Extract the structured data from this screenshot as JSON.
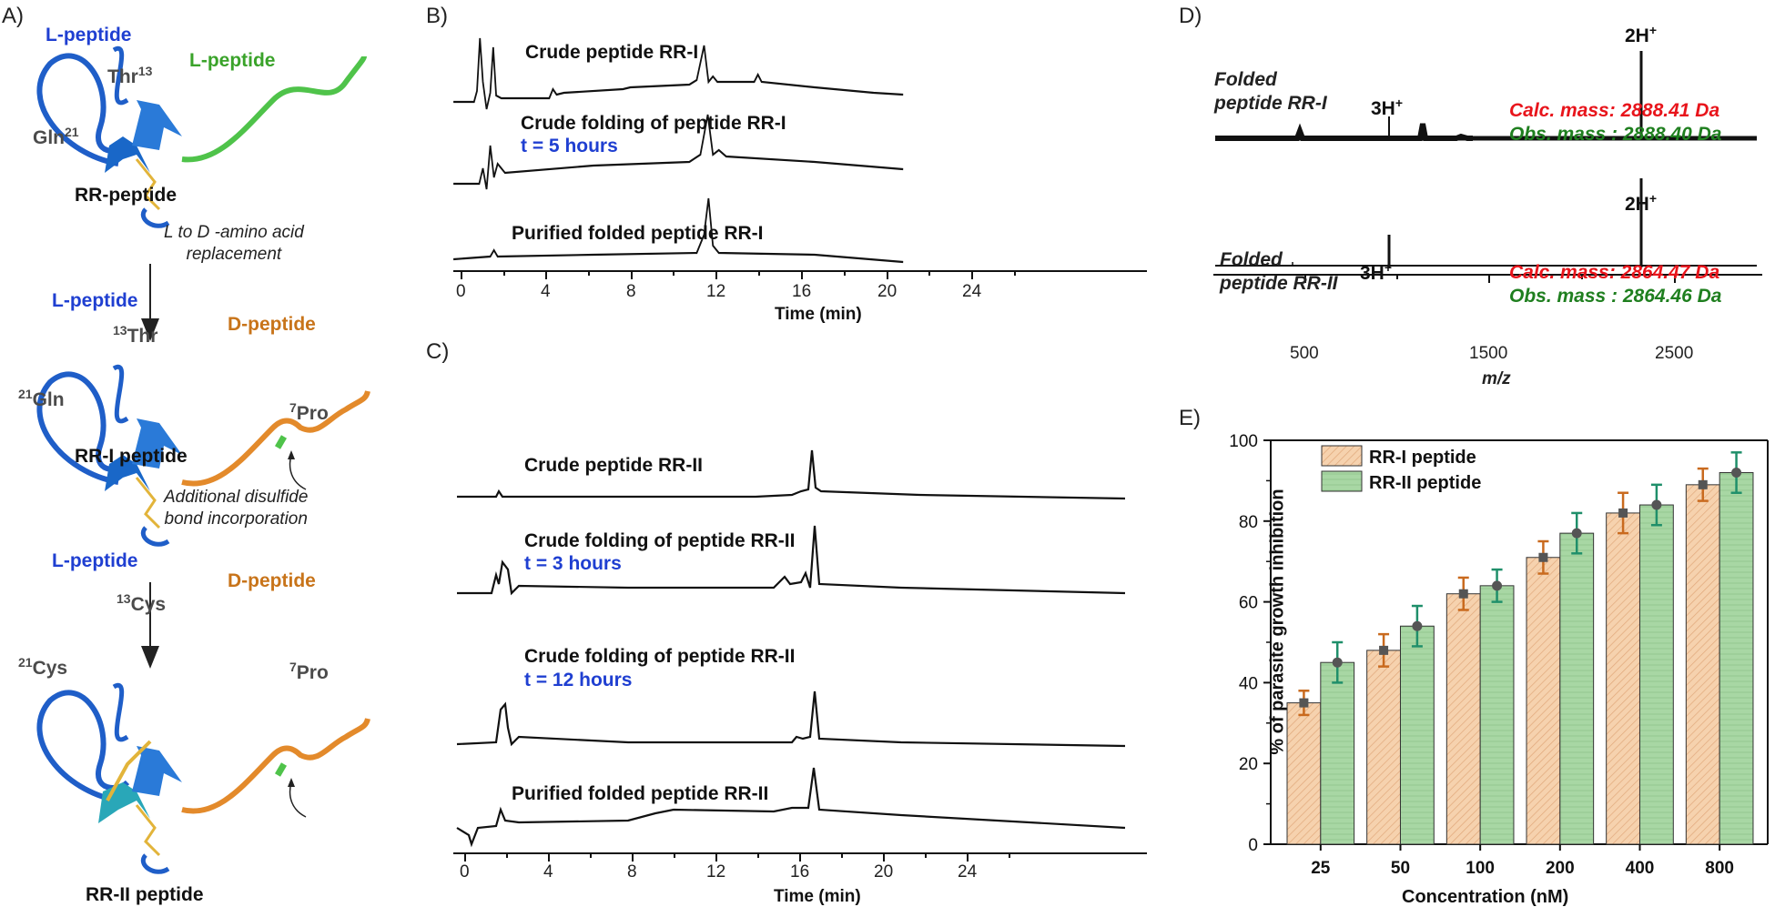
{
  "panel_labels": {
    "a": "A)",
    "b": "B)",
    "c": "C)",
    "d": "D)",
    "e": "E)"
  },
  "panel_a": {
    "s1": {
      "lpep1": "L-peptide",
      "lpep2": "L-peptide",
      "thr": "Thr",
      "thr_sup": "13",
      "gln": "Gln",
      "gln_sup": "21",
      "name": "RR-peptide"
    },
    "arrow1": {
      "line1": "L to D -amino acid",
      "line2": "replacement"
    },
    "s2": {
      "lpep": "L-peptide",
      "dpep": "D-peptide",
      "thr_pre": "13",
      "thr": "Thr",
      "gln_pre": "21",
      "gln": "Gln",
      "pro_pre": "7",
      "pro": "Pro",
      "name": "RR-I peptide"
    },
    "arrow2": {
      "line1": "Additional disulfide",
      "line2": "bond incorporation"
    },
    "s3": {
      "lpep": "L-peptide",
      "dpep": "D-peptide",
      "cys13_pre": "13",
      "cys13": "Cys",
      "cys21_pre": "21",
      "cys21": "Cys",
      "pro_pre": "7",
      "pro": "Pro",
      "name": "RR-II peptide"
    }
  },
  "panel_b": {
    "traces": [
      {
        "label": "Crude peptide RR-I",
        "time": ""
      },
      {
        "label": "Crude folding of peptide RR-I",
        "time": "t = 5 hours"
      },
      {
        "label": "Purified folded peptide RR-I",
        "time": ""
      }
    ],
    "xticks": [
      "0",
      "4",
      "8",
      "12",
      "16",
      "20",
      "24"
    ],
    "xlabel": "Time (min)"
  },
  "panel_c": {
    "traces": [
      {
        "label": "Crude peptide RR-II",
        "time": ""
      },
      {
        "label": "Crude folding of peptide RR-II",
        "time": "t = 3 hours"
      },
      {
        "label": "Crude folding of peptide RR-II",
        "time": "t = 12 hours"
      },
      {
        "label": "Purified folded peptide RR-II",
        "time": ""
      }
    ],
    "xticks": [
      "0",
      "4",
      "8",
      "12",
      "16",
      "20",
      "24"
    ],
    "xlabel": "Time (min)"
  },
  "panel_d": {
    "spectra": [
      {
        "name1": "Folded",
        "name2": "peptide RR-I",
        "calc": "Calc. mass: 2888.41 Da",
        "obs": "Obs. mass : 2888.40 Da",
        "peak3": "3H",
        "peak2": "2H",
        "sup": "+"
      },
      {
        "name1": "Folded",
        "name2": "peptide RR-II",
        "calc": "Calc. mass: 2864.47 Da",
        "obs": "Obs. mass : 2864.46 Da",
        "peak3": "3H",
        "peak2": "2H",
        "sup": "+"
      }
    ],
    "xticks": [
      "500",
      "1500",
      "2500"
    ],
    "xlabel": "m/z",
    "colors": {
      "calc": "#e8141b",
      "obs": "#1f7f1f"
    }
  },
  "chart_data": {
    "type": "bar",
    "categories": [
      "25",
      "50",
      "100",
      "200",
      "400",
      "800"
    ],
    "series": [
      {
        "name": "RR-I peptide",
        "values": [
          35,
          48,
          62,
          71,
          82,
          89
        ],
        "errors": [
          3,
          4,
          4,
          4,
          5,
          4
        ],
        "color": "#f4c9a0",
        "err_color": "#c96a1e"
      },
      {
        "name": "RR-II peptide",
        "values": [
          45,
          54,
          64,
          77,
          84,
          92
        ],
        "errors": [
          5,
          5,
          4,
          5,
          5,
          5
        ],
        "color": "#a8d7a4",
        "err_color": "#1f8f6a"
      }
    ],
    "xlabel": "Concentration (nM)",
    "ylabel": "% of parasite growth inhibition",
    "ylim": [
      0,
      100
    ],
    "yticks": [
      "0",
      "20",
      "40",
      "60",
      "80",
      "100"
    ],
    "legend": "top-left"
  }
}
